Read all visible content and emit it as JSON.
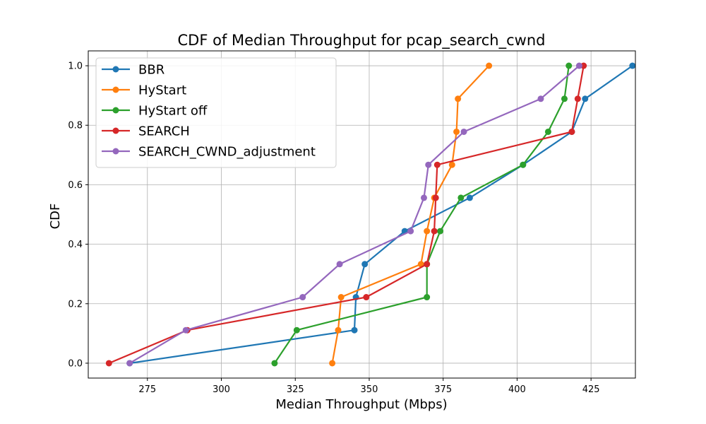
{
  "chart_data": {
    "type": "line",
    "title": "CDF of Median Throughput for pcap_search_cwnd",
    "xlabel": "Median Throughput (Mbps)",
    "ylabel": "CDF",
    "xlim": [
      255,
      440
    ],
    "ylim": [
      -0.05,
      1.05
    ],
    "xticks": [
      275,
      300,
      325,
      350,
      375,
      400,
      425
    ],
    "yticks": [
      0.0,
      0.2,
      0.4,
      0.6,
      0.8,
      1.0
    ],
    "grid": true,
    "legend_position": "top-left",
    "series": [
      {
        "name": "BBR",
        "color": "#1f77b4",
        "x": [
          269,
          345,
          345.5,
          348.5,
          362,
          384,
          402,
          418.5,
          423,
          439
        ],
        "y": [
          0.0,
          0.111,
          0.222,
          0.333,
          0.444,
          0.556,
          0.667,
          0.778,
          0.889,
          1.0
        ]
      },
      {
        "name": "HyStart",
        "color": "#ff7f0e",
        "x": [
          337.5,
          339.5,
          340.5,
          367.5,
          369.5,
          372,
          378,
          379.5,
          380,
          390.5
        ],
        "y": [
          0.0,
          0.111,
          0.222,
          0.333,
          0.444,
          0.556,
          0.667,
          0.778,
          0.889,
          1.0
        ]
      },
      {
        "name": "HyStart off",
        "color": "#2ca02c",
        "x": [
          318,
          325.5,
          369.5,
          369.5,
          374,
          381,
          402,
          410.5,
          416,
          417.5
        ],
        "y": [
          0.0,
          0.111,
          0.222,
          0.333,
          0.444,
          0.556,
          0.667,
          0.778,
          0.889,
          1.0
        ]
      },
      {
        "name": "SEARCH",
        "color": "#d62728",
        "x": [
          262,
          288.5,
          349,
          369.5,
          372,
          372.5,
          373,
          418.5,
          420.5,
          422.5
        ],
        "y": [
          0.0,
          0.111,
          0.222,
          0.333,
          0.444,
          0.556,
          0.667,
          0.778,
          0.889,
          1.0
        ]
      },
      {
        "name": "SEARCH_CWND_adjustment",
        "color": "#9467bd",
        "x": [
          269,
          288,
          327.5,
          340,
          364,
          368.5,
          370,
          382,
          408,
          421
        ],
        "y": [
          0.0,
          0.111,
          0.222,
          0.333,
          0.444,
          0.556,
          0.667,
          0.778,
          0.889,
          1.0
        ]
      }
    ]
  }
}
